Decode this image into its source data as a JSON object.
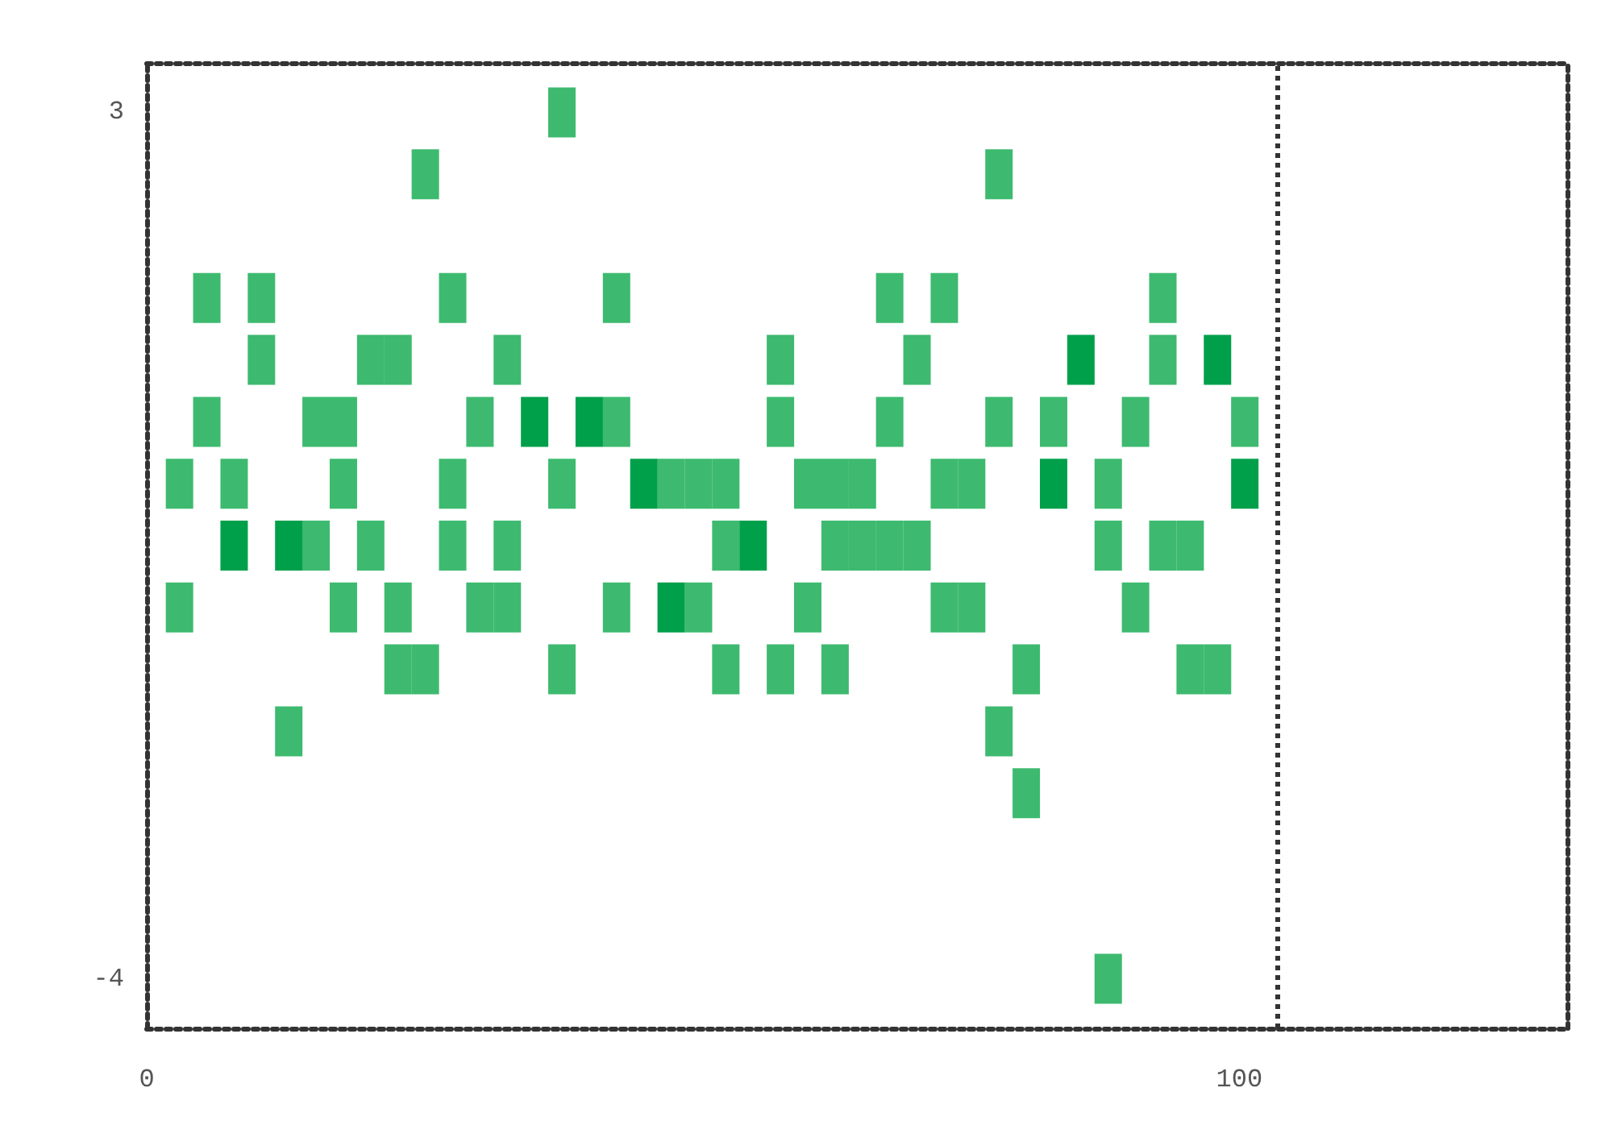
{
  "chart_data": {
    "type": "scatter",
    "marker": "square",
    "xlim": [
      0,
      130
    ],
    "ylim": [
      -4.4,
      3.4
    ],
    "xticks": [
      0,
      100
    ],
    "yticks": [
      -4,
      3
    ],
    "ref_lines": [
      {
        "axis": "x",
        "value": 103.5,
        "line_style": "dotted",
        "color": "#333333"
      }
    ],
    "series": [
      {
        "color": "#3dba6f",
        "x": [
          38,
          25.5,
          78,
          5.5,
          10.5,
          28,
          43,
          68,
          73,
          93,
          10.5,
          20.5,
          23,
          33,
          58,
          70.5,
          93,
          5.5,
          15.5,
          18,
          30.5,
          43,
          58,
          68,
          78,
          83,
          90.5,
          100.5,
          3,
          8,
          18,
          28,
          38,
          48,
          50.5,
          53,
          60.5,
          63,
          65.5,
          73,
          75.5,
          88,
          15.5,
          20.5,
          28,
          33,
          53,
          63,
          65.5,
          68,
          70.5,
          88,
          93,
          95.5,
          3,
          18,
          23,
          30.5,
          33,
          43,
          50.5,
          60.5,
          73,
          75.5,
          90.5,
          23,
          25.5,
          38,
          53,
          58,
          63,
          80.5,
          95.5,
          98,
          13,
          78,
          80.5,
          88
        ],
        "values": [
          3,
          2.5,
          2.5,
          1.5,
          1.5,
          1.5,
          1.5,
          1.5,
          1.5,
          1.5,
          1,
          1,
          1,
          1,
          1,
          1,
          1,
          0.5,
          0.5,
          0.5,
          0.5,
          0.5,
          0.5,
          0.5,
          0.5,
          0.5,
          0.5,
          0.5,
          0,
          0,
          0,
          0,
          0,
          0,
          0,
          0,
          0,
          0,
          0,
          0,
          0,
          0,
          -0.5,
          -0.5,
          -0.5,
          -0.5,
          -0.5,
          -0.5,
          -0.5,
          -0.5,
          -0.5,
          -0.5,
          -0.5,
          -0.5,
          -1,
          -1,
          -1,
          -1,
          -1,
          -1,
          -1,
          -1,
          -1,
          -1,
          -1,
          -1.5,
          -1.5,
          -1.5,
          -1.5,
          -1.5,
          -1.5,
          -1.5,
          -1.5,
          -1.5,
          -2,
          -2,
          -2.5,
          -4
        ]
      },
      {
        "color": "#00a04b",
        "x": [
          85.5,
          98,
          35.5,
          40.5,
          45.5,
          83,
          100.5,
          8,
          13,
          55.5,
          48
        ],
        "values": [
          1,
          1,
          0.5,
          0.5,
          0,
          0,
          0,
          -0.5,
          -0.5,
          -0.5,
          -1
        ]
      }
    ]
  }
}
